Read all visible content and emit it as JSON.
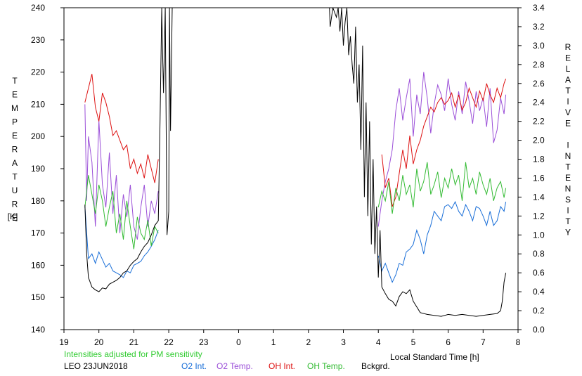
{
  "chart_data": {
    "type": "line",
    "x_ticks": [
      "19",
      "20",
      "21",
      "22",
      "23",
      "0",
      "1",
      "2",
      "3",
      "4",
      "5",
      "6",
      "7",
      "8"
    ],
    "y_left_ticks": [
      "140",
      "150",
      "160",
      "170",
      "180",
      "190",
      "200",
      "210",
      "220",
      "230",
      "240"
    ],
    "y_right_ticks": [
      "0.0",
      "0.2",
      "0.4",
      "0.6",
      "0.8",
      "1.0",
      "1.2",
      "1.4",
      "1.6",
      "1.8",
      "2.0",
      "2.2",
      "2.4",
      "2.6",
      "2.8",
      "3.0",
      "3.2",
      "3.4"
    ],
    "y_left_range": [
      140,
      240
    ],
    "y_right_range": [
      0,
      3.4
    ],
    "x_range": [
      19,
      32
    ],
    "left_axis_label_letters": [
      "T",
      "E",
      "M",
      "P",
      "E",
      "R",
      "A",
      "T",
      "U",
      "R",
      "E"
    ],
    "left_axis_unit": "[K]",
    "right_axis_label_letters": [
      "R",
      "E",
      "L",
      "A",
      "T",
      "I",
      "V",
      "E",
      "",
      "I",
      "N",
      "T",
      "E",
      "N",
      "S",
      "I",
      "T",
      "Y"
    ],
    "x_axis_label": "Local Standard Time [h]",
    "note": "Intensities adjusted for PM sensitivity",
    "note_color": "#33cc33",
    "station_date": "LEO 23JUN2018",
    "grid": false,
    "series": [
      {
        "name": "O2 Int.",
        "color": "#1a6fd8",
        "axis": "right",
        "segments": [
          {
            "x": [
              19.6,
              19.7,
              19.8,
              19.9,
              20.0,
              20.1,
              20.2,
              20.3,
              20.4,
              20.5,
              20.6,
              20.7,
              20.8,
              20.9,
              21.0,
              21.1,
              21.2,
              21.3,
              21.4,
              21.5,
              21.6,
              21.7
            ],
            "y": [
              1.3,
              0.75,
              0.8,
              0.7,
              0.82,
              0.74,
              0.66,
              0.7,
              0.62,
              0.6,
              0.58,
              0.55,
              0.62,
              0.6,
              0.68,
              0.7,
              0.72,
              0.78,
              0.82,
              0.88,
              0.95,
              1.05
            ]
          },
          {
            "x": [
              4.0,
              4.1,
              4.2,
              4.3,
              4.4,
              4.5,
              4.6,
              4.7,
              4.8,
              4.9,
              5.0,
              5.1,
              5.2,
              5.3,
              5.4,
              5.5,
              5.6,
              5.7,
              5.8,
              5.9,
              6.0,
              6.1,
              6.2,
              6.3,
              6.4,
              6.5,
              6.6,
              6.7,
              6.8,
              6.9,
              7.0,
              7.1,
              7.2,
              7.3,
              7.4,
              7.5,
              7.6,
              7.65
            ],
            "y": [
              0.78,
              0.62,
              0.7,
              0.6,
              0.5,
              0.58,
              0.7,
              0.68,
              0.82,
              0.85,
              0.9,
              1.05,
              0.95,
              0.8,
              1.0,
              1.1,
              1.25,
              1.2,
              1.15,
              1.3,
              1.32,
              1.28,
              1.35,
              1.25,
              1.2,
              1.32,
              1.25,
              1.15,
              1.3,
              1.28,
              1.2,
              1.1,
              1.25,
              1.1,
              1.15,
              1.3,
              1.25,
              1.35
            ]
          }
        ]
      },
      {
        "name": "O2 Temp.",
        "color": "#9b4fd8",
        "axis": "left",
        "segments": [
          {
            "x": [
              19.6,
              19.65,
              19.7,
              19.8,
              19.9,
              20.0,
              20.1,
              20.2,
              20.3,
              20.4,
              20.5,
              20.6,
              20.7,
              20.8,
              20.9,
              21.0,
              21.1,
              21.2,
              21.3,
              21.4,
              21.5,
              21.6,
              21.7
            ],
            "y": [
              210,
              180,
              200,
              192,
              172,
              205,
              185,
              178,
              195,
              176,
              188,
              170,
              182,
              175,
              185,
              172,
              168,
              178,
              185,
              172,
              180,
              176,
              183
            ]
          },
          {
            "x": [
              4.0,
              4.1,
              4.2,
              4.3,
              4.4,
              4.5,
              4.6,
              4.7,
              4.8,
              4.9,
              5.0,
              5.1,
              5.2,
              5.3,
              5.4,
              5.5,
              5.6,
              5.7,
              5.8,
              5.9,
              6.0,
              6.1,
              6.2,
              6.3,
              6.4,
              6.5,
              6.6,
              6.7,
              6.8,
              6.9,
              7.0,
              7.1,
              7.2,
              7.3,
              7.4,
              7.5,
              7.6,
              7.65
            ],
            "y": [
              172,
              180,
              186,
              190,
              196,
              208,
              215,
              205,
              212,
              218,
              200,
              213,
              207,
              220,
              212,
              201,
              210,
              216,
              213,
              208,
              218,
              210,
              205,
              214,
              207,
              217,
              211,
              204,
              214,
              208,
              212,
              203,
              215,
              198,
              202,
              212,
              207,
              213
            ]
          }
        ]
      },
      {
        "name": "OH Int.",
        "color": "#dd1111",
        "axis": "right",
        "segments": [
          {
            "x": [
              19.6,
              19.7,
              19.8,
              19.9,
              20.0,
              20.1,
              20.2,
              20.3,
              20.4,
              20.5,
              20.6,
              20.7,
              20.8,
              20.9,
              21.0,
              21.1,
              21.2,
              21.3,
              21.4,
              21.5,
              21.6,
              21.7
            ],
            "y": [
              2.4,
              2.55,
              2.7,
              2.35,
              2.2,
              2.5,
              2.4,
              2.25,
              2.05,
              2.1,
              2.0,
              1.9,
              1.95,
              1.7,
              1.8,
              1.65,
              1.75,
              1.6,
              1.85,
              1.7,
              1.55,
              1.8
            ]
          },
          {
            "x": [
              4.1,
              4.2,
              4.3,
              4.4,
              4.5,
              4.6,
              4.7,
              4.8,
              4.9,
              5.0,
              5.1,
              5.2,
              5.3,
              5.4,
              5.5,
              5.6,
              5.7,
              5.8,
              5.9,
              6.0,
              6.1,
              6.2,
              6.3,
              6.4,
              6.5,
              6.6,
              6.7,
              6.8,
              6.9,
              7.0,
              7.1,
              7.2,
              7.3,
              7.4,
              7.5,
              7.6,
              7.65
            ],
            "y": [
              1.85,
              1.5,
              1.6,
              1.3,
              1.4,
              1.65,
              1.9,
              1.7,
              2.05,
              1.75,
              1.9,
              2.0,
              2.15,
              2.25,
              2.35,
              2.3,
              2.4,
              2.45,
              2.38,
              2.42,
              2.5,
              2.35,
              2.48,
              2.32,
              2.4,
              2.55,
              2.45,
              2.35,
              2.52,
              2.42,
              2.6,
              2.48,
              2.4,
              2.55,
              2.45,
              2.6,
              2.65
            ]
          }
        ]
      },
      {
        "name": "OH Temp.",
        "color": "#33bb33",
        "axis": "left",
        "segments": [
          {
            "x": [
              19.6,
              19.7,
              19.8,
              19.9,
              20.0,
              20.1,
              20.2,
              20.3,
              20.4,
              20.5,
              20.6,
              20.7,
              20.8,
              20.9,
              21.0,
              21.1,
              21.2,
              21.3,
              21.4,
              21.5,
              21.6,
              21.7
            ],
            "y": [
              178,
              188,
              182,
              176,
              185,
              180,
              172,
              178,
              183,
              170,
              176,
              168,
              180,
              172,
              165,
              175,
              170,
              168,
              174,
              166,
              172,
              170
            ]
          },
          {
            "x": [
              4.0,
              4.1,
              4.2,
              4.3,
              4.4,
              4.5,
              4.6,
              4.7,
              4.8,
              4.9,
              5.0,
              5.1,
              5.2,
              5.3,
              5.4,
              5.5,
              5.6,
              5.7,
              5.8,
              5.9,
              6.0,
              6.1,
              6.2,
              6.3,
              6.4,
              6.5,
              6.6,
              6.7,
              6.8,
              6.9,
              7.0,
              7.1,
              7.2,
              7.3,
              7.4,
              7.5,
              7.6,
              7.65
            ],
            "y": [
              178,
              183,
              180,
              186,
              176,
              184,
              180,
              188,
              182,
              185,
              178,
              190,
              183,
              186,
              192,
              182,
              185,
              189,
              181,
              187,
              184,
              190,
              185,
              188,
              180,
              192,
              184,
              187,
              182,
              189,
              185,
              182,
              187,
              180,
              184,
              186,
              181,
              184
            ]
          }
        ]
      },
      {
        "name": "Bckgrd.",
        "color": "#000000",
        "axis": "right",
        "segments": [
          {
            "x": [
              19.6,
              19.65,
              19.7,
              19.8,
              19.9,
              20.0,
              20.1,
              20.2,
              20.3,
              20.4,
              20.5,
              20.6,
              20.7,
              20.8,
              20.9,
              21.0,
              21.1,
              21.2,
              21.3,
              21.4,
              21.5,
              21.6,
              21.7,
              21.75,
              21.8,
              21.82,
              21.85,
              21.9,
              21.95,
              22.0,
              22.02,
              22.05,
              22.1
            ],
            "y": [
              1.32,
              0.8,
              0.55,
              0.45,
              0.42,
              0.4,
              0.44,
              0.43,
              0.48,
              0.5,
              0.52,
              0.55,
              0.6,
              0.62,
              0.68,
              0.72,
              0.75,
              0.82,
              0.88,
              0.92,
              1.0,
              1.1,
              1.15,
              2.2,
              3.4,
              3.0,
              2.5,
              3.4,
              1.0,
              1.25,
              3.4,
              2.1,
              3.4
            ]
          },
          {
            "x": [
              2.6,
              2.62,
              2.7,
              2.8,
              2.85,
              2.9,
              2.95,
              3.0,
              3.05,
              3.1,
              3.15,
              3.2,
              3.25,
              3.3,
              3.35,
              3.4,
              3.45,
              3.5,
              3.55,
              3.6,
              3.65,
              3.7,
              3.75,
              3.8,
              3.85,
              3.9,
              3.95,
              4.0,
              4.05,
              4.1,
              4.2,
              4.3,
              4.4,
              4.5,
              4.6,
              4.7,
              4.8,
              4.9,
              5.0,
              5.2,
              5.4,
              5.6,
              5.8,
              6.0,
              6.2,
              6.4,
              6.6,
              6.8,
              7.0,
              7.2,
              7.4,
              7.5,
              7.55,
              7.6,
              7.65
            ],
            "y": [
              3.4,
              3.2,
              3.4,
              3.3,
              3.4,
              3.15,
              3.4,
              3.0,
              3.25,
              3.4,
              2.9,
              3.1,
              2.8,
              2.6,
              3.2,
              2.4,
              2.8,
              1.9,
              3.0,
              1.4,
              2.4,
              1.2,
              2.2,
              0.9,
              1.8,
              0.8,
              1.3,
              0.55,
              1.05,
              0.45,
              0.38,
              0.32,
              0.3,
              0.25,
              0.35,
              0.4,
              0.38,
              0.42,
              0.3,
              0.18,
              0.16,
              0.15,
              0.14,
              0.16,
              0.15,
              0.16,
              0.15,
              0.14,
              0.15,
              0.16,
              0.17,
              0.2,
              0.3,
              0.5,
              0.6
            ]
          }
        ]
      }
    ]
  }
}
